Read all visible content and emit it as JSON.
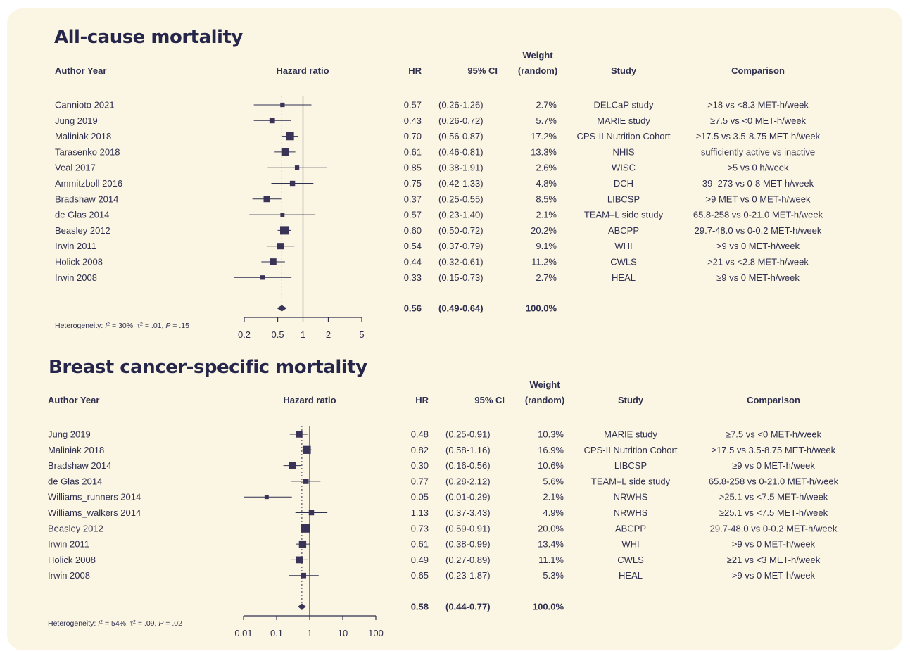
{
  "chart_data": [
    {
      "type": "forest",
      "title": "All-cause mortality",
      "xscale": "log",
      "x_ticks": [
        "0.2",
        "0.5",
        "1",
        "2",
        "5"
      ],
      "pooled_estimate_reference_line": 0.56,
      "headers": {
        "author": "Author Year",
        "plot": "Hazard ratio",
        "hr": "HR",
        "ci": "95% CI",
        "weight_line1": "Weight",
        "weight_line2": "(random)",
        "study": "Study",
        "comparison": "Comparison"
      },
      "studies": [
        {
          "author": "Cannioto 2021",
          "hr": 0.57,
          "lo": 0.26,
          "hi": 1.26,
          "hr_text": "0.57",
          "ci_text": "(0.26-1.26)",
          "weight": 2.7,
          "weight_text": "2.7%",
          "study": "DELCaP study",
          "comparison": ">18 vs <8.3 MET-h/week"
        },
        {
          "author": "Jung 2019",
          "hr": 0.43,
          "lo": 0.26,
          "hi": 0.72,
          "hr_text": "0.43",
          "ci_text": "(0.26-0.72)",
          "weight": 5.7,
          "weight_text": "5.7%",
          "study": "MARIE study",
          "comparison": "≥7.5 vs <0 MET-h/week"
        },
        {
          "author": "Maliniak 2018",
          "hr": 0.7,
          "lo": 0.56,
          "hi": 0.87,
          "hr_text": "0.70",
          "ci_text": "(0.56-0.87)",
          "weight": 17.2,
          "weight_text": "17.2%",
          "study": "CPS-II Nutrition Cohort",
          "comparison": "≥17.5 vs 3.5-8.75 MET-h/week"
        },
        {
          "author": "Tarasenko 2018",
          "hr": 0.61,
          "lo": 0.46,
          "hi": 0.81,
          "hr_text": "0.61",
          "ci_text": "(0.46-0.81)",
          "weight": 13.3,
          "weight_text": "13.3%",
          "study": "NHIS",
          "comparison": "sufficiently active vs inactive"
        },
        {
          "author": "Veal 2017",
          "hr": 0.85,
          "lo": 0.38,
          "hi": 1.91,
          "hr_text": "0.85",
          "ci_text": "(0.38-1.91)",
          "weight": 2.6,
          "weight_text": "2.6%",
          "study": "WISC",
          "comparison": ">5 vs 0 h/week"
        },
        {
          "author": "Ammitzboll 2016",
          "hr": 0.75,
          "lo": 0.42,
          "hi": 1.33,
          "hr_text": "0.75",
          "ci_text": "(0.42-1.33)",
          "weight": 4.8,
          "weight_text": "4.8%",
          "study": "DCH",
          "comparison": "39–273 vs 0-8 MET-h/week"
        },
        {
          "author": "Bradshaw 2014",
          "hr": 0.37,
          "lo": 0.25,
          "hi": 0.55,
          "hr_text": "0.37",
          "ci_text": "(0.25-0.55)",
          "weight": 8.5,
          "weight_text": "8.5%",
          "study": "LIBCSP",
          "comparison": ">9 MET vs 0 MET-h/week"
        },
        {
          "author": "de Glas 2014",
          "hr": 0.57,
          "lo": 0.23,
          "hi": 1.4,
          "hr_text": "0.57",
          "ci_text": "(0.23-1.40)",
          "weight": 2.1,
          "weight_text": "2.1%",
          "study": "TEAM–L side study",
          "comparison": "65.8-258 vs 0-21.0 MET-h/week"
        },
        {
          "author": "Beasley 2012",
          "hr": 0.6,
          "lo": 0.5,
          "hi": 0.72,
          "hr_text": "0.60",
          "ci_text": "(0.50-0.72)",
          "weight": 20.2,
          "weight_text": "20.2%",
          "study": "ABCPP",
          "comparison": "29.7-48.0 vs 0-0.2 MET-h/week"
        },
        {
          "author": "Irwin 2011",
          "hr": 0.54,
          "lo": 0.37,
          "hi": 0.79,
          "hr_text": "0.54",
          "ci_text": "(0.37-0.79)",
          "weight": 9.1,
          "weight_text": "9.1%",
          "study": "WHI",
          "comparison": ">9 vs 0 MET-h/week"
        },
        {
          "author": "Holick 2008",
          "hr": 0.44,
          "lo": 0.32,
          "hi": 0.61,
          "hr_text": "0.44",
          "ci_text": "(0.32-0.61)",
          "weight": 11.2,
          "weight_text": "11.2%",
          "study": "CWLS",
          "comparison": ">21 vs <2.8 MET-h/week"
        },
        {
          "author": "Irwin 2008",
          "hr": 0.33,
          "lo": 0.15,
          "hi": 0.73,
          "hr_text": "0.33",
          "ci_text": "(0.15-0.73)",
          "weight": 2.7,
          "weight_text": "2.7%",
          "study": "HEAL",
          "comparison": "≥9 vs 0 MET-h/week"
        }
      ],
      "pooled": {
        "hr": 0.56,
        "lo": 0.49,
        "hi": 0.64,
        "hr_text": "0.56",
        "ci_text": "(0.49-0.64)",
        "weight_text": "100.0%"
      },
      "heterogeneity": {
        "prefix": "Heterogeneity: ",
        "i2_label": "I",
        "i2_value": " = 30%, ",
        "tau2_label": "τ",
        "tau2_value": " = .01, ",
        "p_label": "P",
        "p_value": " = .15"
      }
    },
    {
      "type": "forest",
      "title": "Breast cancer-specific mortality",
      "xscale": "log",
      "x_ticks": [
        "0.01",
        "0.1",
        "1",
        "10",
        "100"
      ],
      "pooled_estimate_reference_line": 0.58,
      "headers": {
        "author": "Author Year",
        "plot": "Hazard ratio",
        "hr": "HR",
        "ci": "95% CI",
        "weight_line1": "Weight",
        "weight_line2": "(random)",
        "study": "Study",
        "comparison": "Comparison"
      },
      "studies": [
        {
          "author": "Jung 2019",
          "hr": 0.48,
          "lo": 0.25,
          "hi": 0.91,
          "hr_text": "0.48",
          "ci_text": "(0.25-0.91)",
          "weight": 10.3,
          "weight_text": "10.3%",
          "study": "MARIE study",
          "comparison": "≥7.5 vs <0 MET-h/week"
        },
        {
          "author": "Maliniak 2018",
          "hr": 0.82,
          "lo": 0.58,
          "hi": 1.16,
          "hr_text": "0.82",
          "ci_text": "(0.58-1.16)",
          "weight": 16.9,
          "weight_text": "16.9%",
          "study": "CPS-II Nutrition Cohort",
          "comparison": "≥17.5 vs 3.5-8.75 MET-h/week"
        },
        {
          "author": "Bradshaw 2014",
          "hr": 0.3,
          "lo": 0.16,
          "hi": 0.56,
          "hr_text": "0.30",
          "ci_text": "(0.16-0.56)",
          "weight": 10.6,
          "weight_text": "10.6%",
          "study": "LIBCSP",
          "comparison": "≥9 vs 0 MET-h/week"
        },
        {
          "author": "de Glas 2014",
          "hr": 0.77,
          "lo": 0.28,
          "hi": 2.12,
          "hr_text": "0.77",
          "ci_text": "(0.28-2.12)",
          "weight": 5.6,
          "weight_text": "5.6%",
          "study": "TEAM–L side study",
          "comparison": "65.8-258 vs 0-21.0 MET-h/week"
        },
        {
          "author": "Williams_runners 2014",
          "hr": 0.05,
          "lo": 0.01,
          "hi": 0.29,
          "hr_text": "0.05",
          "ci_text": "(0.01-0.29)",
          "weight": 2.1,
          "weight_text": "2.1%",
          "study": "NRWHS",
          "comparison": ">25.1 vs <7.5 MET-h/week"
        },
        {
          "author": "Williams_walkers 2014",
          "hr": 1.13,
          "lo": 0.37,
          "hi": 3.43,
          "hr_text": "1.13",
          "ci_text": "(0.37-3.43)",
          "weight": 4.9,
          "weight_text": "4.9%",
          "study": "NRWHS",
          "comparison": "≥25.1 vs <7.5 MET-h/week"
        },
        {
          "author": "Beasley 2012",
          "hr": 0.73,
          "lo": 0.59,
          "hi": 0.91,
          "hr_text": "0.73",
          "ci_text": "(0.59-0.91)",
          "weight": 20.0,
          "weight_text": "20.0%",
          "study": "ABCPP",
          "comparison": "29.7-48.0 vs 0-0.2 MET-h/week"
        },
        {
          "author": "Irwin 2011",
          "hr": 0.61,
          "lo": 0.38,
          "hi": 0.99,
          "hr_text": "0.61",
          "ci_text": "(0.38-0.99)",
          "weight": 13.4,
          "weight_text": "13.4%",
          "study": "WHI",
          "comparison": ">9 vs 0 MET-h/week"
        },
        {
          "author": "Holick 2008",
          "hr": 0.49,
          "lo": 0.27,
          "hi": 0.89,
          "hr_text": "0.49",
          "ci_text": "(0.27-0.89)",
          "weight": 11.1,
          "weight_text": "11.1%",
          "study": "CWLS",
          "comparison": "≥21 vs <3 MET-h/week"
        },
        {
          "author": "Irwin 2008",
          "hr": 0.65,
          "lo": 0.23,
          "hi": 1.87,
          "hr_text": "0.65",
          "ci_text": "(0.23-1.87)",
          "weight": 5.3,
          "weight_text": "5.3%",
          "study": "HEAL",
          "comparison": ">9 vs 0 MET-h/week"
        }
      ],
      "pooled": {
        "hr": 0.58,
        "lo": 0.44,
        "hi": 0.77,
        "hr_text": "0.58",
        "ci_text": "(0.44-0.77)",
        "weight_text": "100.0%"
      },
      "heterogeneity": {
        "prefix": "Heterogeneity: ",
        "i2_label": "I",
        "i2_value": " = 54%, ",
        "tau2_label": "τ",
        "tau2_value": " = .09, ",
        "p_label": "P",
        "p_value": " = .02"
      }
    }
  ],
  "colors": {
    "background": "#fbf6e3",
    "ink": "#2f2f4f",
    "marker": "#3a3358",
    "title": "#26264a"
  }
}
